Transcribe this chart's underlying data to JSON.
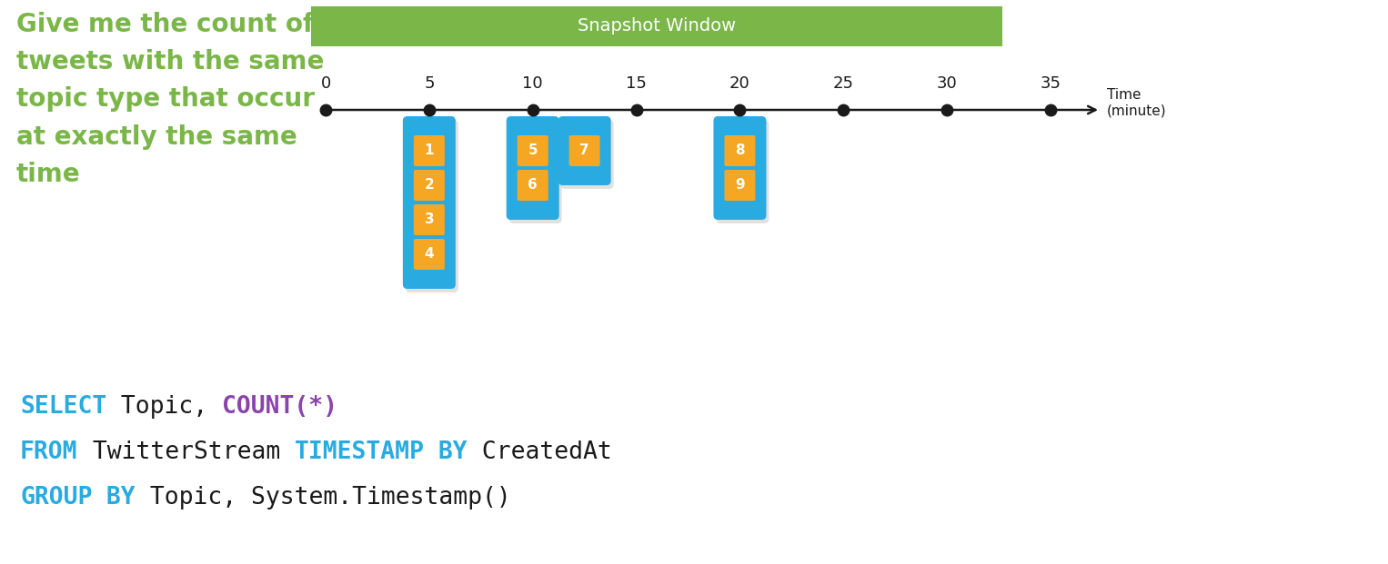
{
  "bg_color": "#ffffff",
  "title_text": "Snapshot Window",
  "title_bg": "#7ab648",
  "title_fg": "#ffffff",
  "timeline_ticks": [
    0,
    5,
    10,
    15,
    20,
    25,
    30,
    35
  ],
  "timeline_color": "#1a1a1a",
  "dot_color": "#1a1a1a",
  "bar_color": "#29abe2",
  "badge_color": "#f5a623",
  "badge_text_color": "#ffffff",
  "bars": [
    {
      "x": 5,
      "labels": [
        "1",
        "2",
        "3",
        "4"
      ]
    },
    {
      "x": 10,
      "labels": [
        "5",
        "6"
      ]
    },
    {
      "x": 12.5,
      "labels": [
        "7"
      ]
    },
    {
      "x": 20,
      "labels": [
        "8",
        "9"
      ]
    }
  ],
  "query_lines": [
    [
      {
        "text": "SELECT",
        "color": "#29abe2",
        "bold": true
      },
      {
        "text": " Topic, ",
        "color": "#1a1a1a",
        "bold": false
      },
      {
        "text": "COUNT(*)",
        "color": "#8b44ac",
        "bold": true
      }
    ],
    [
      {
        "text": "FROM",
        "color": "#29abe2",
        "bold": true
      },
      {
        "text": " TwitterStream ",
        "color": "#1a1a1a",
        "bold": false
      },
      {
        "text": "TIMESTAMP",
        "color": "#29abe2",
        "bold": true
      },
      {
        "text": " BY",
        "color": "#29abe2",
        "bold": true
      },
      {
        "text": " CreatedAt",
        "color": "#1a1a1a",
        "bold": false
      }
    ],
    [
      {
        "text": "GROUP",
        "color": "#29abe2",
        "bold": true
      },
      {
        "text": " BY",
        "color": "#29abe2",
        "bold": true
      },
      {
        "text": " Topic, System.Timestamp()",
        "color": "#1a1a1a",
        "bold": false
      }
    ]
  ],
  "desc_text": "Give me the count of\ntweets with the same\ntopic type that occur\nat exactly the same\ntime",
  "desc_color": "#7ab648",
  "figsize": [
    15.26,
    6.21
  ],
  "dpi": 100
}
